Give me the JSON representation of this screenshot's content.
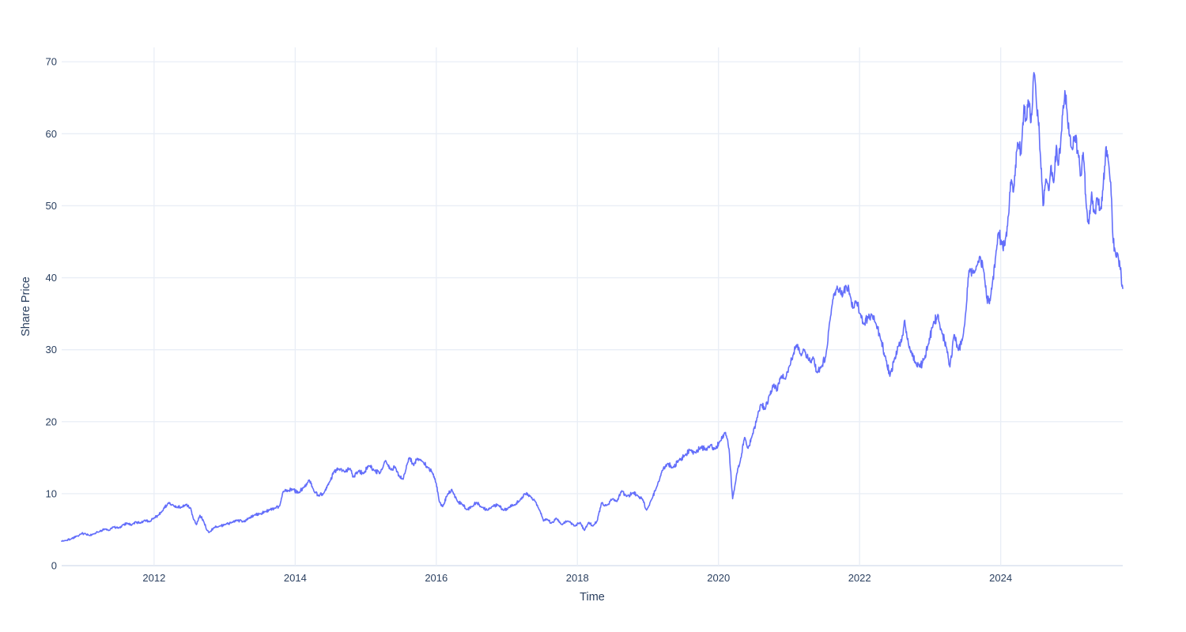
{
  "chart_data": {
    "type": "line",
    "title": "",
    "xlabel": "Time",
    "ylabel": "Share Price",
    "x_ticks": [
      2012,
      2014,
      2016,
      2018,
      2020,
      2022,
      2024
    ],
    "y_ticks": [
      0,
      10,
      20,
      30,
      40,
      50,
      60,
      70
    ],
    "x_range": [
      2010.69,
      2025.73
    ],
    "y_range": [
      0,
      72
    ],
    "grid": true,
    "legend_position": "none",
    "series": [
      {
        "name": "Share Price",
        "keypoints": [
          [
            2010.69,
            3.4
          ],
          [
            2010.75,
            3.5
          ],
          [
            2010.82,
            3.7
          ],
          [
            2010.9,
            4.1
          ],
          [
            2010.96,
            4.4
          ],
          [
            2011.02,
            4.5
          ],
          [
            2011.08,
            4.2
          ],
          [
            2011.15,
            4.4
          ],
          [
            2011.22,
            4.7
          ],
          [
            2011.3,
            5.1
          ],
          [
            2011.36,
            4.9
          ],
          [
            2011.42,
            5.4
          ],
          [
            2011.5,
            5.2
          ],
          [
            2011.56,
            5.7
          ],
          [
            2011.62,
            5.9
          ],
          [
            2011.68,
            5.6
          ],
          [
            2011.74,
            6.1
          ],
          [
            2011.8,
            5.9
          ],
          [
            2011.86,
            6.3
          ],
          [
            2011.94,
            6.1
          ],
          [
            2012.0,
            6.6
          ],
          [
            2012.06,
            7.0
          ],
          [
            2012.12,
            7.6
          ],
          [
            2012.2,
            8.7
          ],
          [
            2012.26,
            8.5
          ],
          [
            2012.32,
            8.1
          ],
          [
            2012.39,
            8.1
          ],
          [
            2012.45,
            8.5
          ],
          [
            2012.52,
            8.0
          ],
          [
            2012.56,
            6.4
          ],
          [
            2012.6,
            5.7
          ],
          [
            2012.65,
            7.0
          ],
          [
            2012.7,
            6.2
          ],
          [
            2012.75,
            4.9
          ],
          [
            2012.78,
            4.6
          ],
          [
            2012.85,
            5.3
          ],
          [
            2012.93,
            5.5
          ],
          [
            2013.0,
            5.7
          ],
          [
            2013.1,
            6.0
          ],
          [
            2013.18,
            6.3
          ],
          [
            2013.26,
            6.1
          ],
          [
            2013.34,
            6.6
          ],
          [
            2013.42,
            7.0
          ],
          [
            2013.5,
            7.2
          ],
          [
            2013.58,
            7.5
          ],
          [
            2013.64,
            7.8
          ],
          [
            2013.72,
            8.0
          ],
          [
            2013.78,
            8.3
          ],
          [
            2013.83,
            10.3
          ],
          [
            2013.9,
            10.4
          ],
          [
            2013.96,
            10.6
          ],
          [
            2014.05,
            10.1
          ],
          [
            2014.12,
            10.9
          ],
          [
            2014.2,
            11.9
          ],
          [
            2014.27,
            10.3
          ],
          [
            2014.33,
            9.7
          ],
          [
            2014.4,
            10.0
          ],
          [
            2014.49,
            11.7
          ],
          [
            2014.55,
            13.1
          ],
          [
            2014.62,
            13.4
          ],
          [
            2014.7,
            13.0
          ],
          [
            2014.78,
            13.5
          ],
          [
            2014.82,
            12.3
          ],
          [
            2014.9,
            13.2
          ],
          [
            2014.97,
            12.8
          ],
          [
            2015.04,
            13.9
          ],
          [
            2015.12,
            13.2
          ],
          [
            2015.2,
            12.8
          ],
          [
            2015.28,
            14.6
          ],
          [
            2015.35,
            13.4
          ],
          [
            2015.42,
            13.7
          ],
          [
            2015.48,
            12.3
          ],
          [
            2015.53,
            12.0
          ],
          [
            2015.59,
            14.2
          ],
          [
            2015.62,
            15.0
          ],
          [
            2015.68,
            13.9
          ],
          [
            2015.73,
            14.9
          ],
          [
            2015.8,
            14.5
          ],
          [
            2015.88,
            13.6
          ],
          [
            2015.94,
            13.0
          ],
          [
            2016.0,
            11.4
          ],
          [
            2016.04,
            9.0
          ],
          [
            2016.09,
            8.2
          ],
          [
            2016.16,
            9.9
          ],
          [
            2016.22,
            10.6
          ],
          [
            2016.3,
            8.9
          ],
          [
            2016.37,
            8.5
          ],
          [
            2016.43,
            7.8
          ],
          [
            2016.5,
            8.2
          ],
          [
            2016.57,
            8.8
          ],
          [
            2016.65,
            8.1
          ],
          [
            2016.73,
            7.7
          ],
          [
            2016.8,
            8.3
          ],
          [
            2016.88,
            8.4
          ],
          [
            2016.95,
            7.7
          ],
          [
            2017.03,
            8.1
          ],
          [
            2017.1,
            8.4
          ],
          [
            2017.18,
            9.0
          ],
          [
            2017.25,
            10.0
          ],
          [
            2017.33,
            9.7
          ],
          [
            2017.4,
            9.0
          ],
          [
            2017.47,
            7.6
          ],
          [
            2017.52,
            6.2
          ],
          [
            2017.58,
            6.4
          ],
          [
            2017.63,
            5.9
          ],
          [
            2017.7,
            6.6
          ],
          [
            2017.78,
            5.7
          ],
          [
            2017.86,
            6.2
          ],
          [
            2017.97,
            5.5
          ],
          [
            2018.04,
            6.0
          ],
          [
            2018.1,
            4.9
          ],
          [
            2018.16,
            6.0
          ],
          [
            2018.22,
            5.5
          ],
          [
            2018.28,
            6.2
          ],
          [
            2018.34,
            8.7
          ],
          [
            2018.42,
            8.4
          ],
          [
            2018.5,
            9.3
          ],
          [
            2018.56,
            8.9
          ],
          [
            2018.63,
            10.4
          ],
          [
            2018.7,
            9.6
          ],
          [
            2018.78,
            10.1
          ],
          [
            2018.85,
            9.8
          ],
          [
            2018.92,
            9.3
          ],
          [
            2018.98,
            7.7
          ],
          [
            2019.05,
            9.2
          ],
          [
            2019.12,
            10.8
          ],
          [
            2019.2,
            13.2
          ],
          [
            2019.28,
            14.2
          ],
          [
            2019.35,
            13.6
          ],
          [
            2019.44,
            14.7
          ],
          [
            2019.52,
            15.3
          ],
          [
            2019.6,
            16.1
          ],
          [
            2019.67,
            15.7
          ],
          [
            2019.75,
            16.5
          ],
          [
            2019.82,
            16.1
          ],
          [
            2019.89,
            16.8
          ],
          [
            2019.95,
            16.2
          ],
          [
            2020.02,
            17.3
          ],
          [
            2020.1,
            18.5
          ],
          [
            2020.15,
            16.2
          ],
          [
            2020.2,
            9.3
          ],
          [
            2020.26,
            12.8
          ],
          [
            2020.31,
            14.6
          ],
          [
            2020.37,
            17.8
          ],
          [
            2020.42,
            16.3
          ],
          [
            2020.48,
            18.1
          ],
          [
            2020.54,
            20.2
          ],
          [
            2020.6,
            22.4
          ],
          [
            2020.66,
            21.7
          ],
          [
            2020.72,
            23.7
          ],
          [
            2020.78,
            25.1
          ],
          [
            2020.83,
            24.3
          ],
          [
            2020.88,
            26.2
          ],
          [
            2020.95,
            25.9
          ],
          [
            2021.0,
            27.6
          ],
          [
            2021.06,
            29.3
          ],
          [
            2021.11,
            30.7
          ],
          [
            2021.16,
            29.4
          ],
          [
            2021.22,
            30.0
          ],
          [
            2021.28,
            28.5
          ],
          [
            2021.34,
            29.0
          ],
          [
            2021.4,
            26.8
          ],
          [
            2021.46,
            27.7
          ],
          [
            2021.52,
            29.0
          ],
          [
            2021.57,
            33.5
          ],
          [
            2021.62,
            37.0
          ],
          [
            2021.67,
            38.3
          ],
          [
            2021.72,
            38.6
          ],
          [
            2021.76,
            37.5
          ],
          [
            2021.81,
            38.8
          ],
          [
            2021.86,
            37.8
          ],
          [
            2021.91,
            35.8
          ],
          [
            2021.96,
            36.6
          ],
          [
            2022.01,
            35.0
          ],
          [
            2022.06,
            33.6
          ],
          [
            2022.12,
            34.6
          ],
          [
            2022.17,
            34.9
          ],
          [
            2022.24,
            33.3
          ],
          [
            2022.3,
            31.4
          ],
          [
            2022.37,
            28.9
          ],
          [
            2022.43,
            26.3
          ],
          [
            2022.49,
            28.6
          ],
          [
            2022.55,
            30.5
          ],
          [
            2022.61,
            32.0
          ],
          [
            2022.64,
            34.1
          ],
          [
            2022.69,
            31.0
          ],
          [
            2022.74,
            29.4
          ],
          [
            2022.79,
            28.2
          ],
          [
            2022.85,
            27.6
          ],
          [
            2022.91,
            28.6
          ],
          [
            2022.97,
            30.6
          ],
          [
            2023.04,
            33.4
          ],
          [
            2023.11,
            34.9
          ],
          [
            2023.17,
            32.2
          ],
          [
            2023.23,
            30.4
          ],
          [
            2023.28,
            27.6
          ],
          [
            2023.34,
            32.1
          ],
          [
            2023.4,
            29.9
          ],
          [
            2023.46,
            31.6
          ],
          [
            2023.51,
            35.6
          ],
          [
            2023.55,
            41.0
          ],
          [
            2023.61,
            40.6
          ],
          [
            2023.66,
            41.6
          ],
          [
            2023.71,
            42.9
          ],
          [
            2023.76,
            40.9
          ],
          [
            2023.8,
            37.2
          ],
          [
            2023.84,
            36.4
          ],
          [
            2023.88,
            39.0
          ],
          [
            2023.93,
            43.1
          ],
          [
            2023.97,
            46.3
          ],
          [
            2024.02,
            44.8
          ],
          [
            2024.06,
            44.5
          ],
          [
            2024.11,
            48.6
          ],
          [
            2024.14,
            53.3
          ],
          [
            2024.18,
            51.9
          ],
          [
            2024.24,
            58.8
          ],
          [
            2024.29,
            57.2
          ],
          [
            2024.33,
            64.0
          ],
          [
            2024.36,
            62.1
          ],
          [
            2024.4,
            64.5
          ],
          [
            2024.43,
            61.6
          ],
          [
            2024.47,
            68.5
          ],
          [
            2024.5,
            65.6
          ],
          [
            2024.53,
            62.3
          ],
          [
            2024.56,
            57.4
          ],
          [
            2024.6,
            50.0
          ],
          [
            2024.64,
            53.7
          ],
          [
            2024.68,
            52.1
          ],
          [
            2024.71,
            55.5
          ],
          [
            2024.75,
            53.2
          ],
          [
            2024.79,
            58.4
          ],
          [
            2024.82,
            55.7
          ],
          [
            2024.86,
            60.2
          ],
          [
            2024.91,
            66.0
          ],
          [
            2024.95,
            61.6
          ],
          [
            2025.0,
            58.1
          ],
          [
            2025.05,
            59.6
          ],
          [
            2025.1,
            57.1
          ],
          [
            2025.14,
            54.2
          ],
          [
            2025.17,
            57.4
          ],
          [
            2025.21,
            50.4
          ],
          [
            2025.25,
            47.5
          ],
          [
            2025.29,
            51.9
          ],
          [
            2025.33,
            49.0
          ],
          [
            2025.37,
            51.1
          ],
          [
            2025.41,
            49.4
          ],
          [
            2025.45,
            52.2
          ],
          [
            2025.49,
            58.1
          ],
          [
            2025.53,
            55.9
          ],
          [
            2025.56,
            53.3
          ],
          [
            2025.59,
            45.7
          ],
          [
            2025.62,
            43.8
          ],
          [
            2025.66,
            43.3
          ],
          [
            2025.69,
            41.6
          ],
          [
            2025.73,
            38.5
          ]
        ]
      }
    ]
  },
  "colors": {
    "line": "#636EFA",
    "text": "#2a3f5f",
    "grid": "#E9EEF6",
    "zeroline": "#E3E9F3",
    "background": "#ffffff"
  }
}
